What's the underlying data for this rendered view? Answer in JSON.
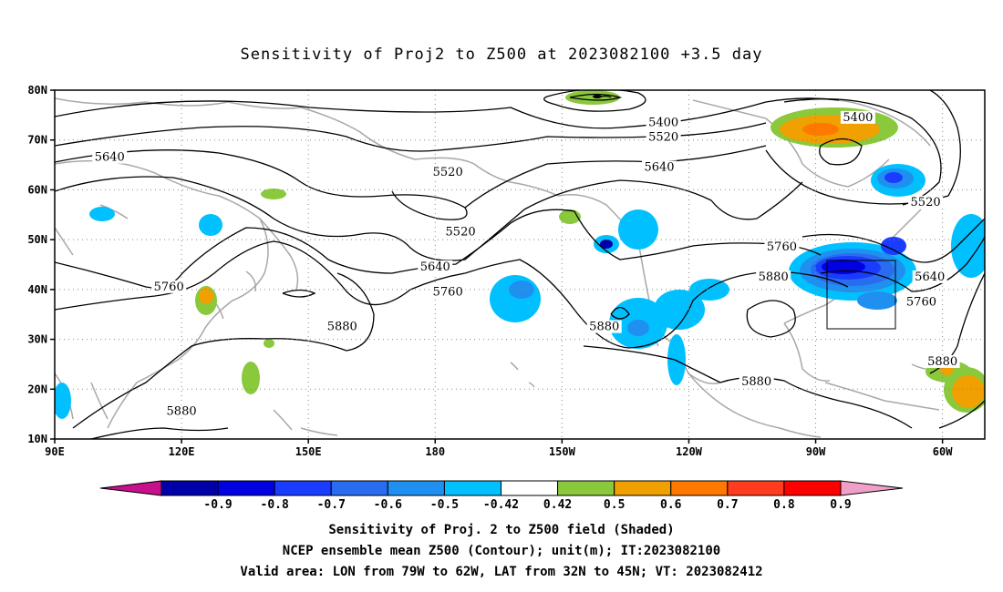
{
  "title": "Sensitivity of Proj2 to Z500 at 2023082100 +3.5 day",
  "map": {
    "lat_labels": [
      "80N",
      "70N",
      "60N",
      "50N",
      "40N",
      "30N",
      "20N",
      "10N"
    ],
    "lon_labels": [
      "90E",
      "120E",
      "150E",
      "180",
      "150W",
      "120W",
      "90W",
      "60W"
    ],
    "lon_range": [
      "90E",
      "50W"
    ],
    "lat_range": [
      "10N",
      "80N"
    ],
    "grid": "dotted",
    "contour_labels": [
      {
        "text": "5640",
        "lon": 103,
        "lat": 66
      },
      {
        "text": "5520",
        "lon": 183,
        "lat": 63
      },
      {
        "text": "5400",
        "lon": 234,
        "lat": 73
      },
      {
        "text": "5520",
        "lon": 234,
        "lat": 70
      },
      {
        "text": "5640",
        "lon": 233,
        "lat": 64
      },
      {
        "text": "5520",
        "lon": 186,
        "lat": 51
      },
      {
        "text": "5640",
        "lon": 180,
        "lat": 44
      },
      {
        "text": "5760",
        "lon": 183,
        "lat": 39
      },
      {
        "text": "5760",
        "lon": 117,
        "lat": 40
      },
      {
        "text": "5880",
        "lon": 158,
        "lat": 32
      },
      {
        "text": "5880",
        "lon": 120,
        "lat": 15
      },
      {
        "text": "5880",
        "lon": 220,
        "lat": 32
      },
      {
        "text": "5760",
        "lon": 262,
        "lat": 48
      },
      {
        "text": "5880",
        "lon": 260,
        "lat": 42
      },
      {
        "text": "5880",
        "lon": 256,
        "lat": 21
      },
      {
        "text": "5880",
        "lon": 300,
        "lat": 25
      },
      {
        "text": "5400",
        "lon": 280,
        "lat": 74
      },
      {
        "text": "5520",
        "lon": 296,
        "lat": 57
      },
      {
        "text": "5640",
        "lon": 297,
        "lat": 42
      },
      {
        "text": "5760",
        "lon": 295,
        "lat": 37
      }
    ],
    "valid_box": {
      "lon_from": "79W",
      "lon_to": "62W",
      "lat_from": "32N",
      "lat_to": "45N"
    }
  },
  "colorbar": {
    "labels": [
      "-0.9",
      "-0.8",
      "-0.7",
      "-0.6",
      "-0.5",
      "-0.42",
      "0.42",
      "0.5",
      "0.6",
      "0.7",
      "0.8",
      "0.9"
    ],
    "colors": [
      "#0000a8",
      "#0000e0",
      "#1a3cff",
      "#2a6cf0",
      "#1f90f0",
      "#00c0ff",
      "#ffffff",
      "#8ac83c",
      "#f0a000",
      "#ff7800",
      "#ff3c1e",
      "#ff0000"
    ],
    "below_color": "#c8108c",
    "above_color": "#f0a0c8"
  },
  "footer": {
    "line1": "Sensitivity of Proj. 2 to Z500 field (Shaded)",
    "line2": "NCEP ensemble mean Z500 (Contour); unit(m); IT:2023082100",
    "line3": "Valid area: LON from 79W to 62W, LAT from 32N to 45N; VT: 2023082412"
  }
}
